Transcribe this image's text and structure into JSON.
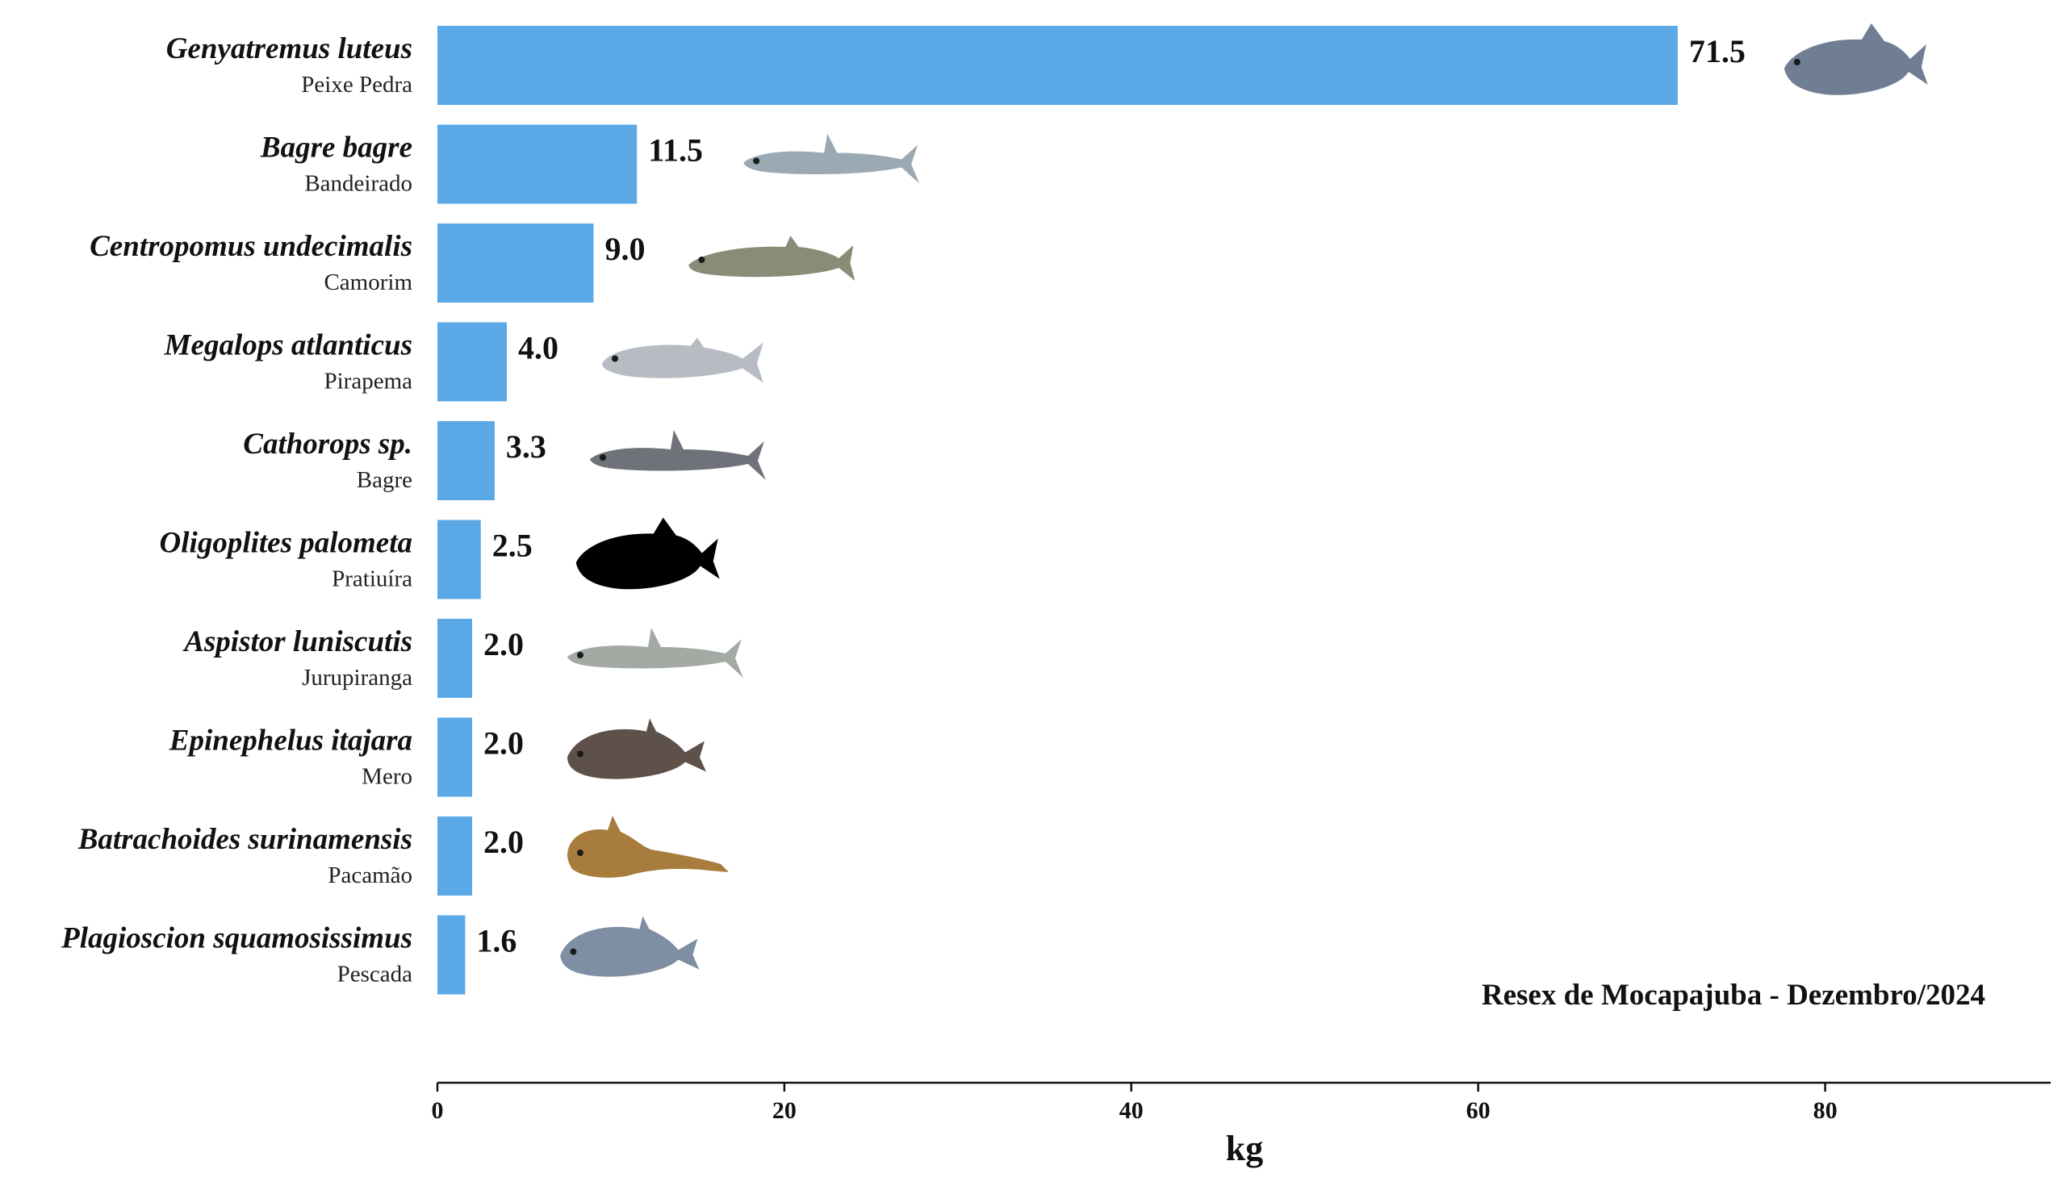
{
  "chart_data": {
    "type": "bar",
    "orientation": "horizontal",
    "bar_color": "#5aa8e6",
    "categories": [
      {
        "scientific": "Genyatremus luteus",
        "common": "Peixe Pedra",
        "value": 71.5,
        "value_label": "71.5",
        "fish_icon": "fish-icon-peixe-pedra",
        "fish_color": "#6f7e93"
      },
      {
        "scientific": "Bagre bagre",
        "common": "Bandeirado",
        "value": 11.5,
        "value_label": "11.5",
        "fish_icon": "fish-icon-bandeirado",
        "fish_color": "#9aa9b3"
      },
      {
        "scientific": "Centropomus undecimalis",
        "common": "Camorim",
        "value": 9.0,
        "value_label": "9.0",
        "fish_icon": "fish-icon-camorim",
        "fish_color": "#8a8c77"
      },
      {
        "scientific": "Megalops atlanticus",
        "common": "Pirapema",
        "value": 4.0,
        "value_label": "4.0",
        "fish_icon": "fish-icon-pirapema",
        "fish_color": "#b7bcc3"
      },
      {
        "scientific": "Cathorops sp.",
        "common": "Bagre",
        "value": 3.3,
        "value_label": "3.3",
        "fish_icon": "fish-icon-bagre",
        "fish_color": "#6f7278"
      },
      {
        "scientific": "Oligoplites palometa",
        "common": "Pratiuíra",
        "value": 2.5,
        "value_label": "2.5",
        "fish_icon": "fish-icon-pratiuira",
        "fish_color": "#000000"
      },
      {
        "scientific": "Aspistor luniscutis",
        "common": "Jurupiranga",
        "value": 2.0,
        "value_label": "2.0",
        "fish_icon": "fish-icon-jurupiranga",
        "fish_color": "#a3aaa4"
      },
      {
        "scientific": "Epinephelus itajara",
        "common": "Mero",
        "value": 2.0,
        "value_label": "2.0",
        "fish_icon": "fish-icon-mero",
        "fish_color": "#5e5149"
      },
      {
        "scientific": "Batrachoides surinamensis",
        "common": "Pacamão",
        "value": 2.0,
        "value_label": "2.0",
        "fish_icon": "fish-icon-pacamao",
        "fish_color": "#a87c3c"
      },
      {
        "scientific": "Plagioscion squamosissimus",
        "common": "Pescada",
        "value": 1.6,
        "value_label": "1.6",
        "fish_icon": "fish-icon-pescada",
        "fish_color": "#7e8ea3"
      }
    ],
    "xlim": [
      0,
      93
    ],
    "xticks": [
      0,
      20,
      40,
      60,
      80
    ],
    "xtick_labels": [
      "0",
      "20",
      "40",
      "60",
      "80"
    ],
    "xlabel": "kg",
    "annotation": "Resex de Mocapajuba - Dezembro/2024",
    "grid": false
  }
}
